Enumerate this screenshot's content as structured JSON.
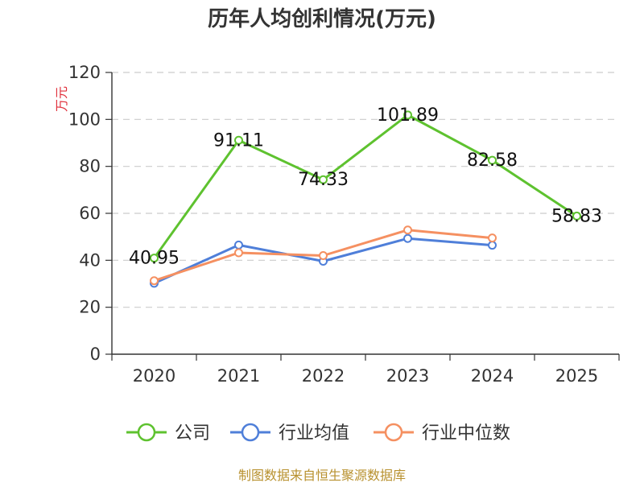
{
  "chart_data": {
    "type": "line",
    "title": "历年人均创利情况(万元)",
    "ylabel": "万元",
    "xlabel": "",
    "categories": [
      "2020",
      "2021",
      "2022",
      "2023",
      "2024",
      "2025"
    ],
    "ylim": [
      0,
      120
    ],
    "yticks": [
      0,
      20,
      40,
      60,
      80,
      100,
      120
    ],
    "grid": true,
    "legend_position": "bottom",
    "series": [
      {
        "name": "公司",
        "color": "#5ec22f",
        "values": [
          40.95,
          91.11,
          74.33,
          101.89,
          82.58,
          58.83
        ],
        "labels": [
          "40.95",
          "91.11",
          "74.33",
          "101.89",
          "82.58",
          "58.83"
        ]
      },
      {
        "name": "行业均值",
        "color": "#4f7fd9",
        "values": [
          30.2,
          46.5,
          39.6,
          49.3,
          46.4,
          null
        ]
      },
      {
        "name": "行业中位数",
        "color": "#f59061",
        "values": [
          31.3,
          43.2,
          42.0,
          52.9,
          49.5,
          null
        ]
      }
    ]
  },
  "source_text": "制图数据来自恒生聚源数据库"
}
